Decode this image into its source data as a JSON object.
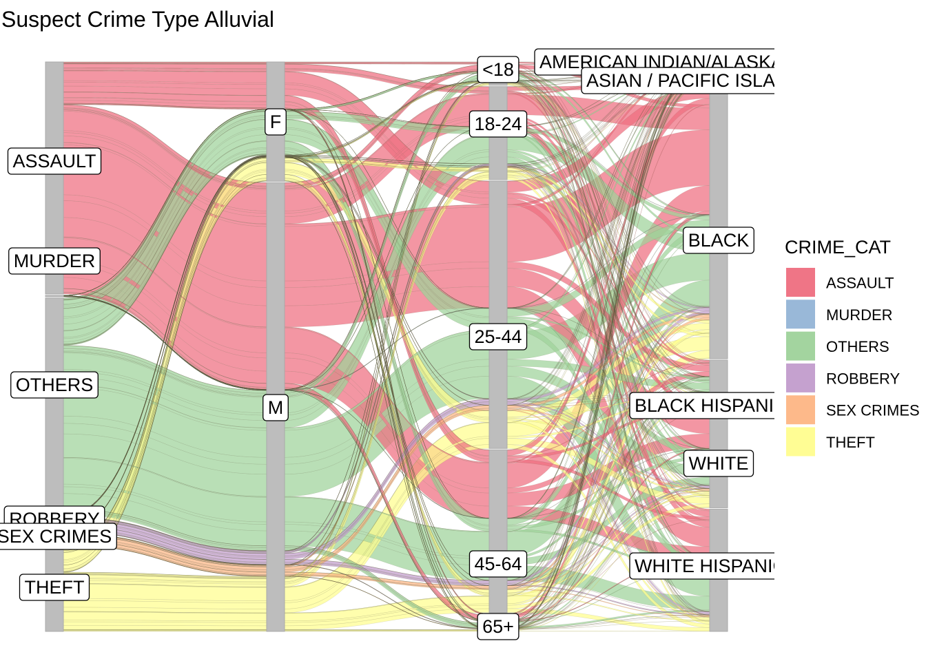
{
  "chart_data": {
    "type": "alluvial",
    "title": "Suspect Crime Type Alluvial",
    "axes": [
      {
        "name": "",
        "strata": [
          {
            "label": "ASSAULT",
            "share": 0.37
          },
          {
            "label": "MURDER",
            "share": 0.002
          },
          {
            "label": "OTHERS",
            "share": 0.345
          },
          {
            "label": "ROBBERY",
            "share": 0.025
          },
          {
            "label": "SEX CRIMES",
            "share": 0.02
          },
          {
            "label": "THEFT",
            "share": 0.135
          }
        ]
      },
      {
        "name": "",
        "strata": [
          {
            "label": "F",
            "share": 0.21
          },
          {
            "label": "M",
            "share": 0.79
          }
        ]
      },
      {
        "name": "",
        "strata": [
          {
            "label": "<18",
            "share": 0.04
          },
          {
            "label": "18-24",
            "share": 0.16
          },
          {
            "label": "25-44",
            "share": 0.46
          },
          {
            "label": "45-64",
            "share": 0.28
          },
          {
            "label": "65+",
            "share": 0.03
          }
        ]
      },
      {
        "name": "",
        "strata": [
          {
            "label": "AMERICAN INDIAN/ALASKAN NATIVE",
            "share": 0.003
          },
          {
            "label": "ASIAN / PACIFIC ISLANDER",
            "share": 0.03
          },
          {
            "label": "BLACK",
            "share": 0.52
          },
          {
            "label": "BLACK HISPANIC",
            "share": 0.075
          },
          {
            "label": "WHITE",
            "share": 0.2
          },
          {
            "label": "WHITE HISPANIC",
            "share": 0.23
          }
        ]
      }
    ],
    "fill_legend": {
      "title": "CRIME_CAT",
      "entries": [
        {
          "label": "ASSAULT",
          "color": "#ee6e80"
        },
        {
          "label": "MURDER",
          "color": "#94b4d6"
        },
        {
          "label": "OTHERS",
          "color": "#9ed29a"
        },
        {
          "label": "ROBBERY",
          "color": "#c29ccc"
        },
        {
          "label": "SEX CRIMES",
          "color": "#fdb584"
        },
        {
          "label": "THEFT",
          "color": "#fffd8e"
        }
      ]
    },
    "legend_position": "right"
  }
}
